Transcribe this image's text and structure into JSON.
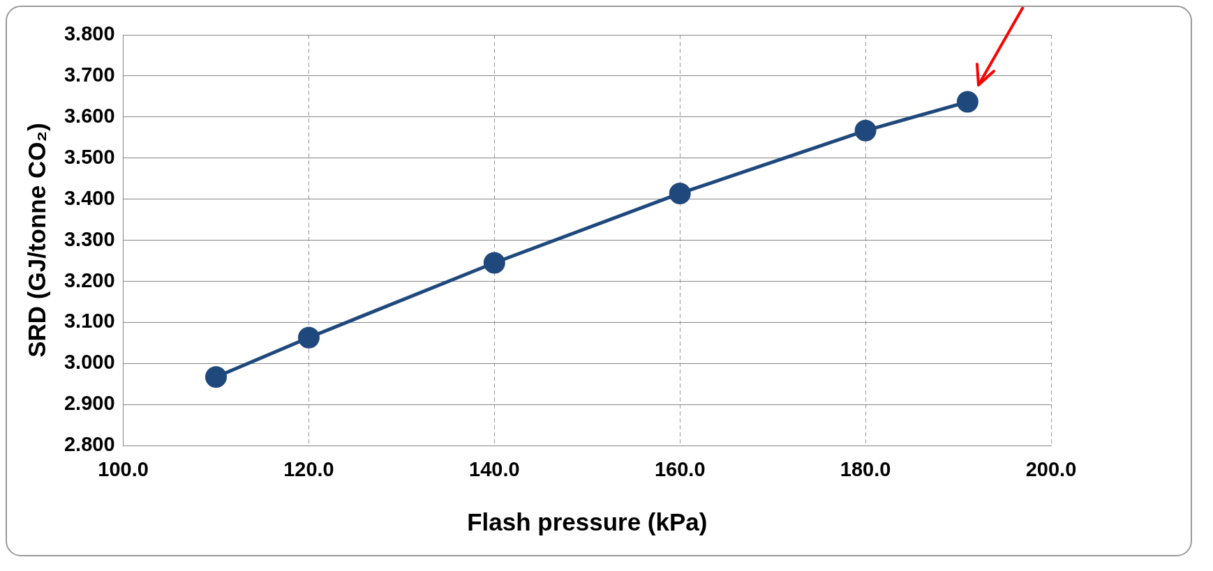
{
  "chart_data": {
    "type": "line",
    "xlabel": "Flash pressure (kPa)",
    "ylabel": "SRD (GJ/tonne CO₂)",
    "x": [
      110,
      120,
      140,
      160,
      180,
      191
    ],
    "series": [
      {
        "color": "#1f497d",
        "values": [
          2.967,
          3.063,
          3.245,
          3.414,
          3.567,
          3.637
        ]
      }
    ],
    "xlim": [
      100,
      200
    ],
    "xticks": [
      {
        "value": 100,
        "label": "100.0"
      },
      {
        "value": 120,
        "label": "120.0"
      },
      {
        "value": 140,
        "label": "140.0"
      },
      {
        "value": 160,
        "label": "160.0"
      },
      {
        "value": 180,
        "label": "180.0"
      },
      {
        "value": 200,
        "label": "200.0"
      }
    ],
    "ylim": [
      2.8,
      3.8
    ],
    "yticks": [
      {
        "value": 2.8,
        "label": "2.800"
      },
      {
        "value": 2.9,
        "label": "2.900"
      },
      {
        "value": 3.0,
        "label": "3.000"
      },
      {
        "value": 3.1,
        "label": "3.100"
      },
      {
        "value": 3.2,
        "label": "3.200"
      },
      {
        "value": 3.3,
        "label": "3.300"
      },
      {
        "value": 3.4,
        "label": "3.400"
      },
      {
        "value": 3.5,
        "label": "3.500"
      },
      {
        "value": 3.6,
        "label": "3.600"
      },
      {
        "value": 3.7,
        "label": "3.700"
      },
      {
        "value": 3.8,
        "label": "3.800"
      }
    ],
    "grid": true,
    "legend": false,
    "marker": "circle",
    "line_style": "solid"
  }
}
